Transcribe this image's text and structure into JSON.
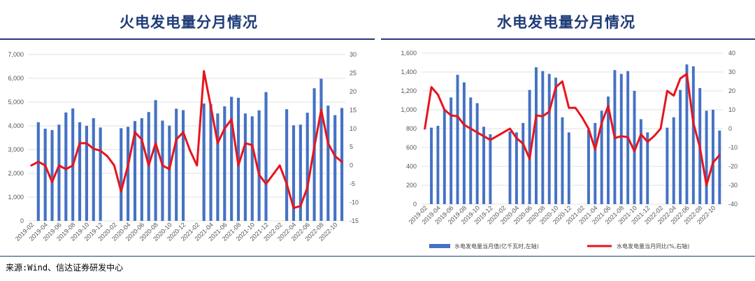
{
  "titles": {
    "left": "火电发电量分月情况",
    "right": "水电发电量分月情况"
  },
  "source": "来源:Wind、信达证券研发中心",
  "colors": {
    "bar": "#4472c4",
    "line": "#e8141c",
    "title": "#1f3b78",
    "grid": "#d9d9d9"
  },
  "chart_data": [
    {
      "type": "bar",
      "title": "火电发电量分月情况",
      "x": [
        "2019-02",
        "2019-03",
        "2019-04",
        "2019-05",
        "2019-06",
        "2019-07",
        "2019-08",
        "2019-09",
        "2019-10",
        "2019-11",
        "2019-12",
        "2020-01",
        "2020-02",
        "2020-03",
        "2020-04",
        "2020-05",
        "2020-06",
        "2020-07",
        "2020-08",
        "2020-09",
        "2020-10",
        "2020-11",
        "2020-12",
        "2021-01",
        "2021-02",
        "2021-03",
        "2021-04",
        "2021-05",
        "2021-06",
        "2021-07",
        "2021-08",
        "2021-09",
        "2021-10",
        "2021-11",
        "2021-12",
        "2022-01",
        "2022-02",
        "2022-03",
        "2022-04",
        "2022-05",
        "2022-06",
        "2022-07",
        "2022-08",
        "2022-09",
        "2022-10",
        "2022-11"
      ],
      "xtick_labels": [
        "2019-02",
        "2019-04",
        "2019-06",
        "2019-08",
        "2019-10",
        "2019-12",
        "2020-02",
        "2020-04",
        "2020-06",
        "2020-08",
        "2020-10",
        "2020-12",
        "2021-02",
        "2021-04",
        "2021-06",
        "2021-08",
        "2021-10",
        "2021-12",
        "2022-02",
        "2022-04",
        "2022-06",
        "2022-08",
        "2022-10"
      ],
      "series": [
        {
          "axis": "left",
          "values": [
            null,
            4150,
            3880,
            3820,
            4050,
            4560,
            4730,
            4150,
            4000,
            4320,
            3930,
            null,
            null,
            3900,
            3960,
            4200,
            4320,
            4580,
            5080,
            4220,
            4010,
            4720,
            4660,
            null,
            null,
            4940,
            4920,
            4520,
            4820,
            5220,
            5180,
            4520,
            4400,
            4650,
            5420,
            null,
            null,
            4700,
            4020,
            4050,
            4550,
            5580,
            5980,
            4850,
            4450,
            4750
          ]
        },
        {
          "axis": "right",
          "values": [
            0,
            1,
            0,
            -4.5,
            0,
            -1,
            0,
            6,
            6,
            4.5,
            4,
            2.5,
            0,
            -7,
            0,
            9,
            7,
            0,
            6,
            0,
            -1,
            7,
            9,
            4,
            0,
            25.5,
            16,
            6,
            10,
            12.5,
            0,
            6,
            5.5,
            -2.5,
            -5,
            -2.5,
            0,
            -5,
            -11.5,
            -11,
            -6,
            5,
            15,
            6,
            2.5,
            1
          ]
        }
      ],
      "ylim_left": [
        0,
        7000
      ],
      "yticks_left": [
        "7,000",
        "6,000",
        "5,000",
        "4,000",
        "3,000",
        "2,000",
        "1,000",
        "0"
      ],
      "ylim_right": [
        -15,
        30
      ],
      "yticks_right": [
        "30",
        "25",
        "20",
        "15",
        "10",
        "5",
        "0",
        "-5",
        "-10",
        "-15"
      ]
    },
    {
      "type": "bar",
      "title": "水电发电量分月情况",
      "x": [
        "2019-02",
        "2019-03",
        "2019-04",
        "2019-05",
        "2019-06",
        "2019-07",
        "2019-08",
        "2019-09",
        "2019-10",
        "2019-11",
        "2019-12",
        "2020-01",
        "2020-02",
        "2020-03",
        "2020-04",
        "2020-05",
        "2020-06",
        "2020-07",
        "2020-08",
        "2020-09",
        "2020-10",
        "2020-11",
        "2020-12",
        "2021-01",
        "2021-02",
        "2021-03",
        "2021-04",
        "2021-05",
        "2021-06",
        "2021-07",
        "2021-08",
        "2021-09",
        "2021-10",
        "2021-11",
        "2021-12",
        "2022-01",
        "2022-02",
        "2022-03",
        "2022-04",
        "2022-05",
        "2022-06",
        "2022-07",
        "2022-08",
        "2022-09",
        "2022-10",
        "2022-11"
      ],
      "xtick_labels": [
        "2019-02",
        "2019-04",
        "2019-06",
        "2019-08",
        "2019-10",
        "2019-12",
        "2020-02",
        "2020-04",
        "2020-06",
        "2020-08",
        "2020-10",
        "2020-12",
        "2021-02",
        "2021-04",
        "2021-06",
        "2021-08",
        "2021-10",
        "2021-12",
        "2022-02",
        "2022-04",
        "2022-06",
        "2022-08",
        "2022-10"
      ],
      "series": [
        {
          "name": "水电发电量当月值(亿千瓦时,左轴)",
          "axis": "left",
          "values": [
            null,
            810,
            830,
            1000,
            1130,
            1370,
            1290,
            1130,
            1070,
            820,
            740,
            null,
            null,
            770,
            760,
            860,
            1210,
            1450,
            1410,
            1380,
            1340,
            920,
            760,
            null,
            null,
            790,
            860,
            990,
            1140,
            1420,
            1380,
            1410,
            1200,
            900,
            760,
            null,
            null,
            810,
            920,
            1210,
            1480,
            1460,
            1230,
            990,
            1000,
            780
          ]
        },
        {
          "name": "水电发电量当月同比(%,右轴)",
          "axis": "right",
          "values": [
            0,
            22,
            18,
            10,
            7,
            6.5,
            2,
            0,
            -2,
            -4,
            -6,
            -4,
            -2,
            0,
            -5,
            -8,
            -16,
            7,
            6.5,
            9,
            22,
            25,
            11,
            11,
            6,
            0,
            -11,
            3,
            12,
            -5,
            -4,
            -4.5,
            -12,
            -3,
            -7,
            -4,
            0,
            20,
            17.5,
            26.5,
            29,
            3,
            -10,
            -30,
            -18,
            -14
          ]
        }
      ],
      "ylim_left": [
        0,
        1600
      ],
      "yticks_left": [
        "1,600",
        "1,400",
        "1,200",
        "1,000",
        "800",
        "600",
        "400",
        "200",
        "0"
      ],
      "ylim_right": [
        -40,
        40
      ],
      "yticks_right": [
        "40",
        "30",
        "20",
        "10",
        "0",
        "-10",
        "-20",
        "-30",
        "-40"
      ],
      "legend": {
        "placement": "bottom"
      }
    }
  ]
}
